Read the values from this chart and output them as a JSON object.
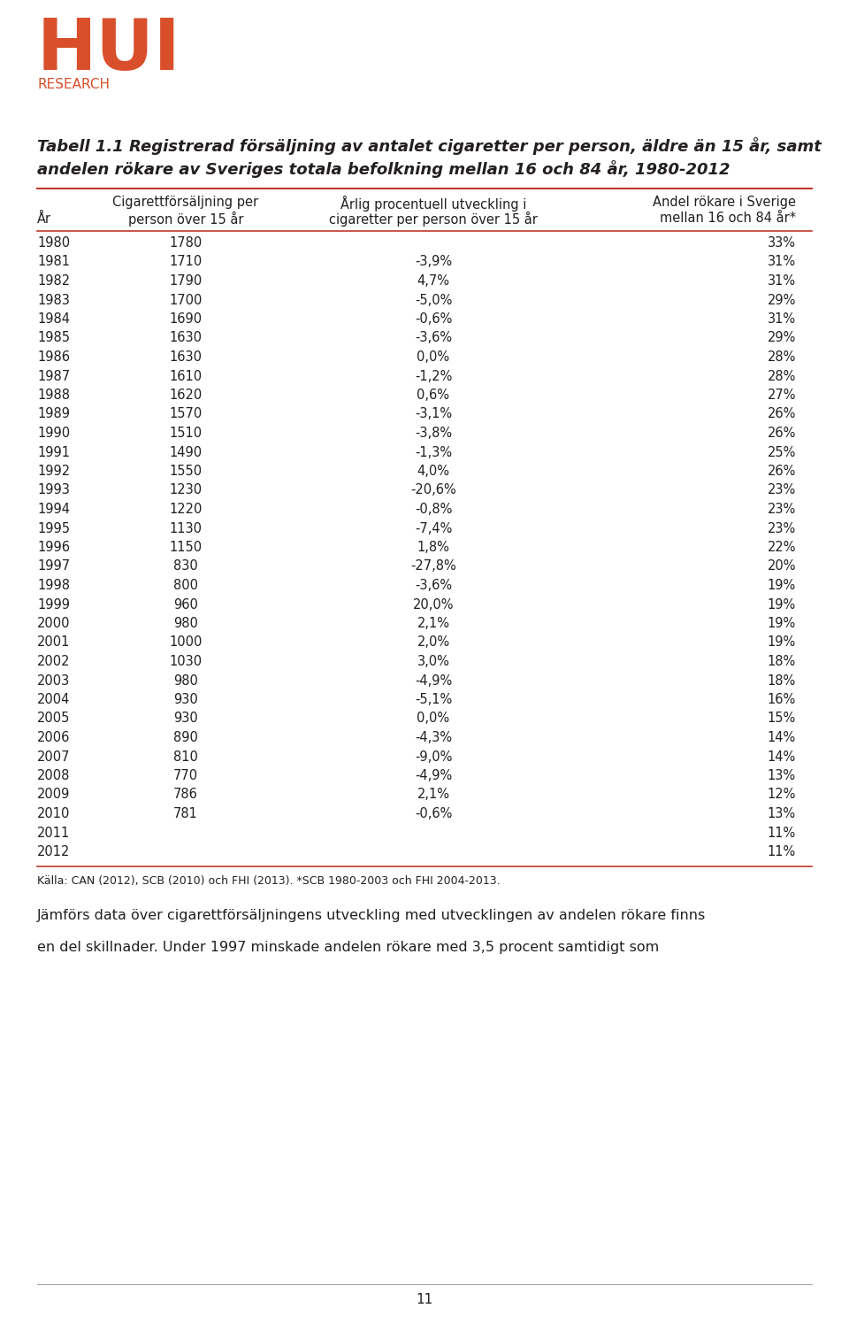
{
  "title_line1": "Tabell 1.1 Registrerad försäljning av antalet cigaretter per person, äldre än 15 år, samt",
  "title_line2": "andelen rökare av Sveriges totala befolkning mellan 16 och 84 år, 1980-2012",
  "col_headers": [
    [
      "Cigarettförsäljning per",
      "person över 15 år"
    ],
    [
      "Årlig procentuell utveckling i",
      "cigaretter per person över 15 år"
    ],
    [
      "Andel rökare i Sverige",
      "mellan 16 och 84 år*"
    ]
  ],
  "col0_header": "År",
  "rows": [
    [
      "1980",
      "1780",
      "",
      "33%"
    ],
    [
      "1981",
      "1710",
      "-3,9%",
      "31%"
    ],
    [
      "1982",
      "1790",
      "4,7%",
      "31%"
    ],
    [
      "1983",
      "1700",
      "-5,0%",
      "29%"
    ],
    [
      "1984",
      "1690",
      "-0,6%",
      "31%"
    ],
    [
      "1985",
      "1630",
      "-3,6%",
      "29%"
    ],
    [
      "1986",
      "1630",
      "0,0%",
      "28%"
    ],
    [
      "1987",
      "1610",
      "-1,2%",
      "28%"
    ],
    [
      "1988",
      "1620",
      "0,6%",
      "27%"
    ],
    [
      "1989",
      "1570",
      "-3,1%",
      "26%"
    ],
    [
      "1990",
      "1510",
      "-3,8%",
      "26%"
    ],
    [
      "1991",
      "1490",
      "-1,3%",
      "25%"
    ],
    [
      "1992",
      "1550",
      "4,0%",
      "26%"
    ],
    [
      "1993",
      "1230",
      "-20,6%",
      "23%"
    ],
    [
      "1994",
      "1220",
      "-0,8%",
      "23%"
    ],
    [
      "1995",
      "1130",
      "-7,4%",
      "23%"
    ],
    [
      "1996",
      "1150",
      "1,8%",
      "22%"
    ],
    [
      "1997",
      "830",
      "-27,8%",
      "20%"
    ],
    [
      "1998",
      "800",
      "-3,6%",
      "19%"
    ],
    [
      "1999",
      "960",
      "20,0%",
      "19%"
    ],
    [
      "2000",
      "980",
      "2,1%",
      "19%"
    ],
    [
      "2001",
      "1000",
      "2,0%",
      "19%"
    ],
    [
      "2002",
      "1030",
      "3,0%",
      "18%"
    ],
    [
      "2003",
      "980",
      "-4,9%",
      "18%"
    ],
    [
      "2004",
      "930",
      "-5,1%",
      "16%"
    ],
    [
      "2005",
      "930",
      "0,0%",
      "15%"
    ],
    [
      "2006",
      "890",
      "-4,3%",
      "14%"
    ],
    [
      "2007",
      "810",
      "-9,0%",
      "14%"
    ],
    [
      "2008",
      "770",
      "-4,9%",
      "13%"
    ],
    [
      "2009",
      "786",
      "2,1%",
      "12%"
    ],
    [
      "2010",
      "781",
      "-0,6%",
      "13%"
    ],
    [
      "2011",
      "",
      "",
      "11%"
    ],
    [
      "2012",
      "",
      "",
      "11%"
    ]
  ],
  "footnote": "Källa: CAN (2012), SCB (2010) och FHI (2013). *SCB 1980-2003 och FHI 2004-2013.",
  "body_line1": "Jämförs data över cigarettförsäljningens utveckling med utvecklingen av andelen rökare finns",
  "body_line2": "en del skillnader. Under 1997 minskade andelen rökare med 3,5 procent samtidigt som",
  "hui_color": "#d94f2b",
  "text_color": "#231f20",
  "line_color": "#c0392b",
  "background_color": "#ffffff",
  "page_number": "11",
  "logo_hui_fontsize": 58,
  "logo_research_fontsize": 11,
  "title_fontsize": 13.0,
  "header_fontsize": 10.5,
  "row_fontsize": 10.5,
  "footnote_fontsize": 9.0,
  "body_fontsize": 11.5
}
